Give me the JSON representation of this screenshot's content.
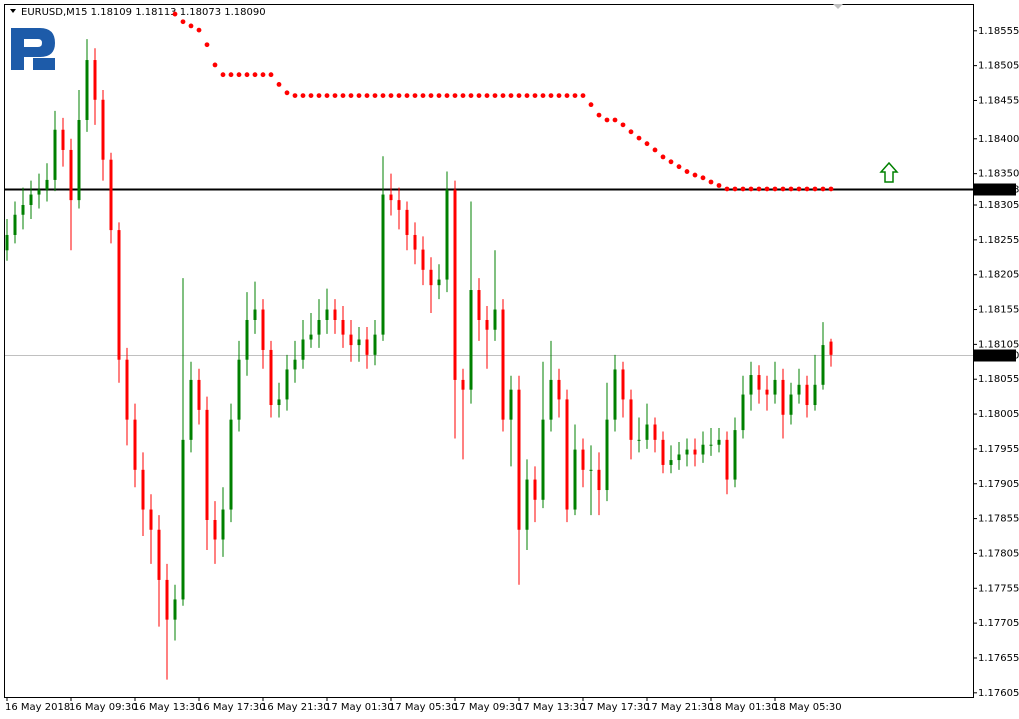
{
  "chart_data": {
    "type": "candlestick",
    "title": "EURUSD,M15  1.18109 1.18113 1.18073 1.18090",
    "up_color": "#008000",
    "down_color": "#ff0000",
    "ylim": [
      1.17599,
      1.18592
    ],
    "yticks": [
      1.18555,
      1.18505,
      1.18455,
      {
        "value": 1.184,
        "label": "1.18400"
      },
      {
        "value": 1.1835,
        "label": "1.18350"
      },
      1.18305,
      1.18255,
      1.18205,
      1.18155,
      1.18105,
      1.18055,
      1.18005,
      1.17955,
      1.17905,
      1.17855,
      1.17805,
      1.17755,
      1.17705,
      1.17655,
      1.17605
    ],
    "categories": [
      "16 May 2018",
      null,
      null,
      null,
      null,
      null,
      null,
      null,
      "16 May 09:30",
      null,
      null,
      null,
      null,
      null,
      null,
      null,
      "16 May 13:30",
      null,
      null,
      null,
      null,
      null,
      null,
      null,
      "16 May 17:30",
      null,
      null,
      null,
      null,
      null,
      null,
      null,
      "16 May 21:30",
      null,
      null,
      null,
      null,
      null,
      null,
      null,
      "17 May 01:30",
      null,
      null,
      null,
      null,
      null,
      null,
      null,
      "17 May 05:30",
      null,
      null,
      null,
      null,
      null,
      null,
      null,
      "17 May 09:30",
      null,
      null,
      null,
      null,
      null,
      null,
      null,
      "17 May 13:30",
      null,
      null,
      null,
      null,
      null,
      null,
      null,
      "17 May 17:30",
      null,
      null,
      null,
      null,
      null,
      null,
      null,
      "17 May 21:30",
      null,
      null,
      null,
      null,
      null,
      null,
      null,
      "18 May 01:30",
      null,
      null,
      null,
      null,
      null,
      null,
      null,
      "18 May 05:30",
      null,
      null,
      null,
      null,
      null,
      null,
      null
    ],
    "candles": [
      [
        1.1824,
        1.18285,
        1.18225,
        1.18262
      ],
      [
        1.18262,
        1.1831,
        1.1825,
        1.18291
      ],
      [
        1.18291,
        1.1833,
        1.1827,
        1.18305
      ],
      [
        1.18305,
        1.1834,
        1.18285,
        1.1832
      ],
      [
        1.1832,
        1.1835,
        1.183,
        1.18327
      ],
      [
        1.18327,
        1.18365,
        1.1831,
        1.18341
      ],
      [
        1.18341,
        1.1844,
        1.18325,
        1.18413
      ],
      [
        1.18413,
        1.1843,
        1.1836,
        1.18384
      ],
      [
        1.18384,
        1.184,
        1.1824,
        1.18312
      ],
      [
        1.18312,
        1.1847,
        1.183,
        1.18427
      ],
      [
        1.18427,
        1.18543,
        1.1841,
        1.18513
      ],
      [
        1.18513,
        1.1853,
        1.1842,
        1.18456
      ],
      [
        1.18456,
        1.1847,
        1.1834,
        1.1837
      ],
      [
        1.1837,
        1.1838,
        1.1825,
        1.18269
      ],
      [
        1.18269,
        1.1828,
        1.1805,
        1.18083
      ],
      [
        1.18083,
        1.181,
        1.1796,
        1.17997
      ],
      [
        1.17997,
        1.1802,
        1.179,
        1.17925
      ],
      [
        1.17925,
        1.1795,
        1.1783,
        1.17868
      ],
      [
        1.17868,
        1.1789,
        1.1779,
        1.17839
      ],
      [
        1.17839,
        1.1786,
        1.177,
        1.17767
      ],
      [
        1.17767,
        1.1779,
        1.17624,
        1.1771
      ],
      [
        1.1771,
        1.1776,
        1.1768,
        1.17739
      ],
      [
        1.17739,
        1.182,
        1.1773,
        1.17968
      ],
      [
        1.17968,
        1.1808,
        1.1795,
        1.18054
      ],
      [
        1.18054,
        1.1807,
        1.1799,
        1.18011
      ],
      [
        1.18011,
        1.1803,
        1.1781,
        1.17853
      ],
      [
        1.17853,
        1.1788,
        1.1779,
        1.17825
      ],
      [
        1.17825,
        1.179,
        1.178,
        1.17868
      ],
      [
        1.17868,
        1.1802,
        1.1785,
        1.17997
      ],
      [
        1.17997,
        1.1811,
        1.1798,
        1.18083
      ],
      [
        1.18083,
        1.1818,
        1.1806,
        1.1814
      ],
      [
        1.1814,
        1.18195,
        1.1812,
        1.18155
      ],
      [
        1.18155,
        1.1817,
        1.1807,
        1.18097
      ],
      [
        1.18097,
        1.1811,
        1.18,
        1.18018
      ],
      [
        1.18018,
        1.1805,
        1.18,
        1.18026
      ],
      [
        1.18026,
        1.1809,
        1.1801,
        1.18069
      ],
      [
        1.18069,
        1.1811,
        1.1805,
        1.18083
      ],
      [
        1.18083,
        1.1814,
        1.1807,
        1.18112
      ],
      [
        1.18112,
        1.1815,
        1.181,
        1.18119
      ],
      [
        1.18119,
        1.1817,
        1.181,
        1.1814
      ],
      [
        1.1814,
        1.18185,
        1.1812,
        1.18155
      ],
      [
        1.18155,
        1.1817,
        1.1812,
        1.1814
      ],
      [
        1.1814,
        1.1816,
        1.181,
        1.18119
      ],
      [
        1.18119,
        1.1814,
        1.1808,
        1.18104
      ],
      [
        1.18104,
        1.1813,
        1.1808,
        1.18112
      ],
      [
        1.18112,
        1.1813,
        1.1807,
        1.1809
      ],
      [
        1.1809,
        1.1814,
        1.18075,
        1.18119
      ],
      [
        1.18119,
        1.18375,
        1.1811,
        1.1832
      ],
      [
        1.1832,
        1.1835,
        1.1829,
        1.18312
      ],
      [
        1.18312,
        1.1833,
        1.1827,
        1.18298
      ],
      [
        1.18298,
        1.1831,
        1.1824,
        1.18262
      ],
      [
        1.18262,
        1.1828,
        1.1822,
        1.18241
      ],
      [
        1.18241,
        1.1826,
        1.1819,
        1.18212
      ],
      [
        1.18212,
        1.1823,
        1.1815,
        1.1819
      ],
      [
        1.1819,
        1.1822,
        1.1817,
        1.18198
      ],
      [
        1.18198,
        1.18353,
        1.1818,
        1.18327
      ],
      [
        1.18327,
        1.1834,
        1.1797,
        1.18054
      ],
      [
        1.18054,
        1.1807,
        1.1794,
        1.1804
      ],
      [
        1.1804,
        1.1831,
        1.1802,
        1.18183
      ],
      [
        1.18183,
        1.182,
        1.1811,
        1.1814
      ],
      [
        1.1814,
        1.1816,
        1.1807,
        1.18126
      ],
      [
        1.18126,
        1.1824,
        1.1811,
        1.18155
      ],
      [
        1.18155,
        1.1817,
        1.1798,
        1.17997
      ],
      [
        1.17997,
        1.1806,
        1.1793,
        1.1804
      ],
      [
        1.1804,
        1.1806,
        1.1776,
        1.17839
      ],
      [
        1.17839,
        1.1794,
        1.1781,
        1.17911
      ],
      [
        1.17911,
        1.1793,
        1.1785,
        1.17882
      ],
      [
        1.17882,
        1.1808,
        1.1787,
        1.17997
      ],
      [
        1.17997,
        1.1811,
        1.1798,
        1.18054
      ],
      [
        1.18054,
        1.1807,
        1.18,
        1.18026
      ],
      [
        1.18026,
        1.1804,
        1.1785,
        1.17868
      ],
      [
        1.17868,
        1.1799,
        1.1786,
        1.17954
      ],
      [
        1.17954,
        1.1797,
        1.179,
        1.17925
      ],
      [
        1.17925,
        1.1796,
        1.1786,
        1.17925
      ],
      [
        1.17925,
        1.1795,
        1.1786,
        1.17896
      ],
      [
        1.17896,
        1.1805,
        1.1788,
        1.17997
      ],
      [
        1.17997,
        1.1809,
        1.1798,
        1.18069
      ],
      [
        1.18069,
        1.1808,
        1.18,
        1.18026
      ],
      [
        1.18026,
        1.1804,
        1.1794,
        1.17968
      ],
      [
        1.17968,
        1.18,
        1.1795,
        1.17968
      ],
      [
        1.17968,
        1.1802,
        1.17955,
        1.1799
      ],
      [
        1.1799,
        1.18,
        1.1795,
        1.17968
      ],
      [
        1.17968,
        1.1798,
        1.1792,
        1.17932
      ],
      [
        1.17932,
        1.1796,
        1.1792,
        1.17939
      ],
      [
        1.17939,
        1.17965,
        1.17925,
        1.17947
      ],
      [
        1.17947,
        1.1797,
        1.1793,
        1.17954
      ],
      [
        1.17954,
        1.1797,
        1.1793,
        1.17947
      ],
      [
        1.17947,
        1.1798,
        1.17935,
        1.17961
      ],
      [
        1.17961,
        1.17985,
        1.17945,
        1.17961
      ],
      [
        1.17961,
        1.17985,
        1.1795,
        1.17968
      ],
      [
        1.17968,
        1.1798,
        1.1789,
        1.17911
      ],
      [
        1.17911,
        1.18,
        1.179,
        1.17982
      ],
      [
        1.17982,
        1.1806,
        1.1797,
        1.18033
      ],
      [
        1.18033,
        1.1808,
        1.1801,
        1.18061
      ],
      [
        1.18061,
        1.18075,
        1.1802,
        1.1804
      ],
      [
        1.1804,
        1.1806,
        1.1801,
        1.18033
      ],
      [
        1.18033,
        1.1808,
        1.1802,
        1.18054
      ],
      [
        1.18054,
        1.1807,
        1.1797,
        1.18004
      ],
      [
        1.18004,
        1.1805,
        1.1799,
        1.18033
      ],
      [
        1.18033,
        1.1807,
        1.1802,
        1.18047
      ],
      [
        1.18047,
        1.1806,
        1.18,
        1.18018
      ],
      [
        1.18018,
        1.1809,
        1.1801,
        1.18047
      ],
      [
        1.18047,
        1.18137,
        1.1804,
        1.18104
      ],
      [
        1.18109,
        1.18113,
        1.18073,
        1.1809
      ]
    ],
    "indicator": {
      "color": "#ff0000",
      "values": [
        null,
        null,
        null,
        null,
        null,
        null,
        null,
        null,
        null,
        null,
        null,
        null,
        null,
        null,
        null,
        null,
        null,
        null,
        null,
        null,
        null,
        1.18579,
        1.18568,
        1.18562,
        1.18556,
        1.18535,
        1.18506,
        1.18492,
        1.18492,
        1.18492,
        1.18492,
        1.18492,
        1.18492,
        1.18492,
        1.18478,
        1.18466,
        1.18462,
        1.18462,
        1.18462,
        1.18462,
        1.18462,
        1.18462,
        1.18462,
        1.18462,
        1.18462,
        1.18462,
        1.18462,
        1.18462,
        1.18462,
        1.18462,
        1.18462,
        1.18462,
        1.18462,
        1.18462,
        1.18462,
        1.18462,
        1.18462,
        1.18462,
        1.18462,
        1.18462,
        1.18462,
        1.18462,
        1.18462,
        1.18462,
        1.18462,
        1.18462,
        1.18462,
        1.18462,
        1.18462,
        1.18462,
        1.18462,
        1.18462,
        1.18462,
        1.18449,
        1.18434,
        1.18427,
        1.18427,
        1.1842,
        1.1841,
        1.18401,
        1.18393,
        1.18384,
        1.18374,
        1.18367,
        1.1836,
        1.18353,
        1.18348,
        1.18344,
        1.18338,
        1.18333,
        1.18328,
        1.18328,
        1.18328,
        1.18328,
        1.18328,
        1.18328,
        1.18328,
        1.18328,
        1.18328,
        1.18328,
        1.18328,
        1.18328,
        1.18328,
        1.18328
      ]
    },
    "hlines": [
      {
        "value": 1.18328,
        "label": "1.18328",
        "color": "#000000"
      },
      {
        "value": 1.1809,
        "label": "1.18090",
        "color": "#c0c0c0"
      }
    ]
  }
}
